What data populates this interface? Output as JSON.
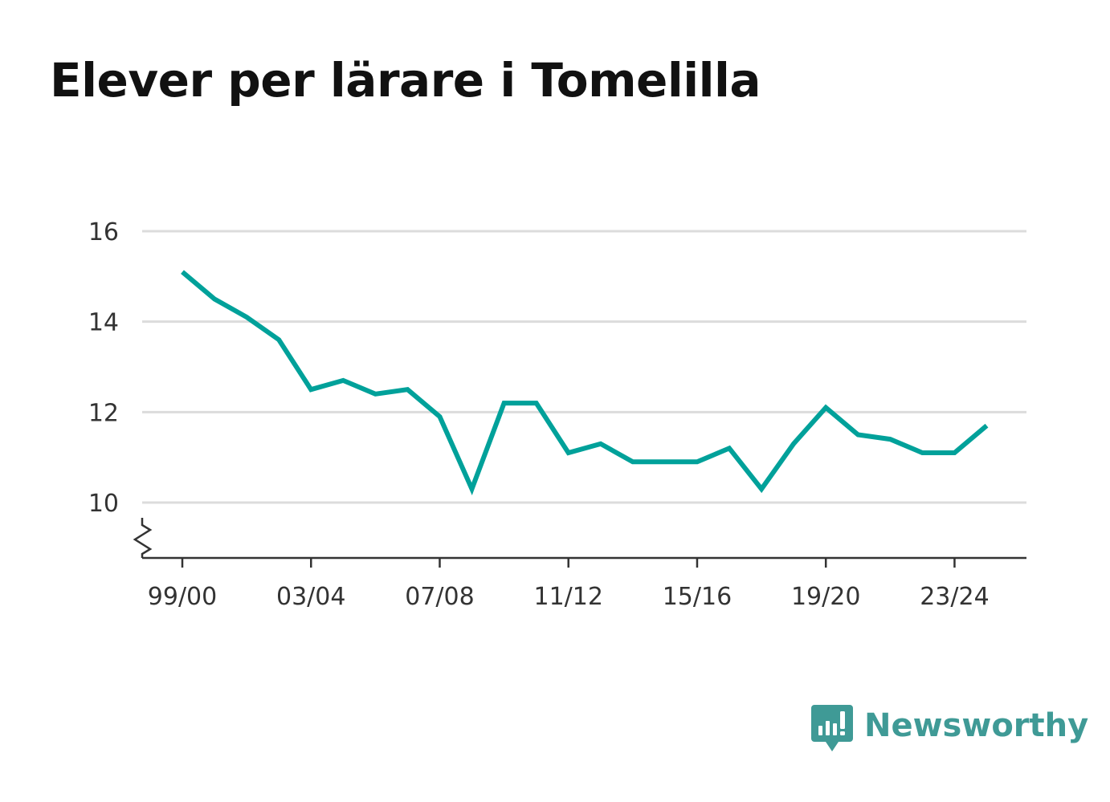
{
  "chart_data": {
    "type": "line",
    "title": "Elever per lärare i Tomelilla",
    "xlabel": "",
    "ylabel": "",
    "x": [
      "99/00",
      "00/01",
      "01/02",
      "02/03",
      "03/04",
      "04/05",
      "05/06",
      "06/07",
      "07/08",
      "08/09",
      "09/10",
      "10/11",
      "11/12",
      "12/13",
      "13/14",
      "14/15",
      "15/16",
      "16/17",
      "17/18",
      "18/19",
      "19/20",
      "20/21",
      "21/22",
      "22/23",
      "23/24",
      "24/25"
    ],
    "series": [
      {
        "values": [
          15.1,
          14.5,
          14.1,
          13.6,
          12.5,
          12.7,
          12.4,
          12.5,
          11.9,
          10.3,
          12.2,
          12.2,
          11.1,
          11.3,
          10.9,
          10.9,
          10.9,
          11.2,
          10.3,
          11.3,
          12.1,
          11.5,
          11.4,
          11.1,
          11.1,
          11.7
        ],
        "color": "#00a19a"
      }
    ],
    "x_tick_labels": [
      "99/00",
      "03/04",
      "07/08",
      "11/12",
      "15/16",
      "19/20",
      "23/24"
    ],
    "y_ticks": [
      10,
      12,
      14,
      16
    ],
    "ylim": [
      8.8,
      16
    ],
    "y_axis_break": true,
    "grid": true,
    "legend": "none"
  },
  "brand": {
    "name": "Newsworthy",
    "color": "#3f9a96"
  }
}
